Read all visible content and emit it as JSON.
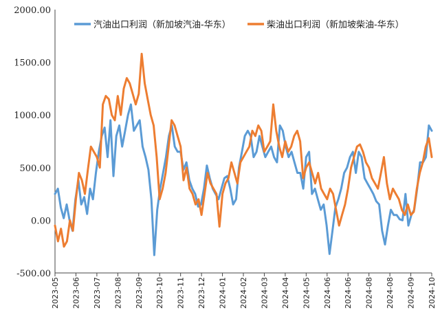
{
  "chart_data": {
    "type": "line",
    "title": "",
    "xlabel": "",
    "ylabel": "",
    "ylim": [
      -500,
      2000
    ],
    "y_ticks": [
      "2000.00",
      "1500.00",
      "1000.00",
      "500.00",
      "0.00",
      "-500.00"
    ],
    "y_tick_values": [
      2000,
      1500,
      1000,
      500,
      0,
      -500
    ],
    "x_ticks": [
      "2023-05",
      "2023-06",
      "2023-07",
      "2023-08",
      "2023-09",
      "2023-10",
      "2023-11",
      "2023-12",
      "2024-01",
      "2024-02",
      "2024-03",
      "2024-04",
      "2024-05",
      "2024-06",
      "2024-06",
      "2024-08",
      "2024-08",
      "2024-09",
      "2024-10"
    ],
    "grid": false,
    "legend_position": "top",
    "series": [
      {
        "name": "汽油出口利润（新加坡汽油-华东）",
        "color": "#5B9BD5",
        "values": [
          250,
          300,
          120,
          20,
          150,
          0,
          -100,
          200,
          380,
          150,
          220,
          60,
          300,
          200,
          450,
          650,
          800,
          880,
          600,
          950,
          420,
          800,
          900,
          700,
          850,
          1000,
          1100,
          850,
          900,
          950,
          700,
          600,
          480,
          200,
          -330,
          100,
          300,
          450,
          600,
          800,
          900,
          700,
          650,
          650,
          480,
          550,
          380,
          300,
          250,
          130,
          150,
          300,
          520,
          400,
          300,
          250,
          200,
          300,
          400,
          420,
          300,
          150,
          200,
          500,
          650,
          800,
          850,
          800,
          600,
          650,
          800,
          700,
          600,
          650,
          700,
          600,
          550,
          900,
          850,
          700,
          600,
          650,
          550,
          450,
          450,
          300,
          600,
          650,
          250,
          300,
          200,
          100,
          150,
          -50,
          -320,
          -100,
          120,
          200,
          300,
          450,
          500,
          600,
          650,
          450,
          650,
          600,
          400,
          350,
          300,
          250,
          180,
          150,
          -100,
          -230,
          -50,
          100,
          50,
          50,
          10,
          0,
          250,
          -50,
          50,
          100,
          300,
          550,
          550,
          600,
          900,
          850
        ]
      },
      {
        "name": "柴油出口利润（新加坡柴油-华东）",
        "color": "#ED7D31",
        "values": [
          -50,
          -200,
          -80,
          -250,
          -200,
          0,
          -100,
          200,
          450,
          380,
          250,
          480,
          700,
          650,
          600,
          500,
          1100,
          1180,
          1150,
          1000,
          950,
          1180,
          1000,
          1250,
          1350,
          1300,
          1200,
          1100,
          1200,
          1580,
          1300,
          1150,
          1000,
          900,
          600,
          200,
          300,
          450,
          700,
          950,
          900,
          800,
          700,
          380,
          500,
          300,
          250,
          150,
          200,
          50,
          250,
          450,
          350,
          300,
          250,
          -60,
          250,
          350,
          400,
          550,
          450,
          350,
          550,
          600,
          650,
          700,
          850,
          800,
          900,
          850,
          650,
          700,
          750,
          1100,
          850,
          700,
          600,
          750,
          650,
          700,
          800,
          850,
          750,
          400,
          500,
          550,
          450,
          350,
          450,
          300,
          250,
          200,
          300,
          250,
          100,
          -50,
          50,
          150,
          300,
          500,
          600,
          700,
          720,
          650,
          550,
          500,
          400,
          350,
          300,
          450,
          600,
          350,
          200,
          300,
          250,
          200,
          100,
          50,
          150,
          50,
          80,
          300,
          450,
          550,
          700,
          780,
          600
        ]
      }
    ]
  },
  "legend": {
    "gasoline_label": "汽油出口利润（新加坡汽油-华东）",
    "diesel_label": "柴油出口利润（新加坡柴油-华东）"
  }
}
